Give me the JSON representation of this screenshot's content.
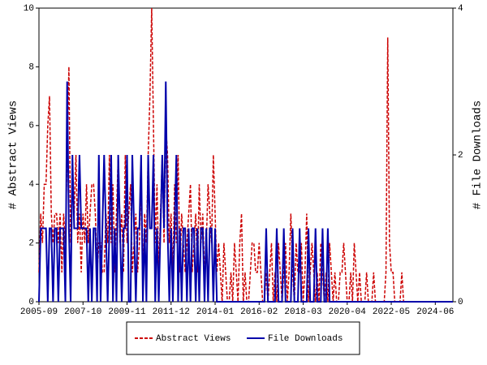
{
  "chart_data": {
    "type": "line",
    "y_label": "# Abstract Views",
    "y2_label": "# File Downloads",
    "x": [
      "2005-09",
      "2005-10",
      "2005-11",
      "2005-12",
      "2006-01",
      "2006-02",
      "2006-03",
      "2006-04",
      "2006-05",
      "2006-06",
      "2006-07",
      "2006-08",
      "2006-09",
      "2006-10",
      "2006-11",
      "2006-12",
      "2007-01",
      "2007-02",
      "2007-03",
      "2007-04",
      "2007-05",
      "2007-06",
      "2007-07",
      "2007-08",
      "2007-09",
      "2007-10",
      "2007-11",
      "2007-12",
      "2008-01",
      "2008-02",
      "2008-03",
      "2008-04",
      "2008-05",
      "2008-06",
      "2008-07",
      "2008-08",
      "2008-09",
      "2008-10",
      "2008-11",
      "2008-12",
      "2009-01",
      "2009-02",
      "2009-03",
      "2009-04",
      "2009-05",
      "2009-06",
      "2009-07",
      "2009-08",
      "2009-09",
      "2009-10",
      "2009-11",
      "2009-12",
      "2010-01",
      "2010-02",
      "2010-03",
      "2010-04",
      "2010-05",
      "2010-06",
      "2010-07",
      "2010-08",
      "2010-09",
      "2010-10",
      "2010-11",
      "2010-12",
      "2011-01",
      "2011-02",
      "2011-03",
      "2011-04",
      "2011-05",
      "2011-06",
      "2011-07",
      "2011-08",
      "2011-09",
      "2011-10",
      "2011-11",
      "2011-12",
      "2012-01",
      "2012-02",
      "2012-03",
      "2012-04",
      "2012-05",
      "2012-06",
      "2012-07",
      "2012-08",
      "2012-09",
      "2012-10",
      "2012-11",
      "2012-12",
      "2013-01",
      "2013-02",
      "2013-03",
      "2013-04",
      "2013-05",
      "2013-06",
      "2013-07",
      "2013-08",
      "2013-09",
      "2013-10",
      "2013-11",
      "2013-12",
      "2014-01",
      "2014-02",
      "2014-03",
      "2014-04",
      "2014-05",
      "2014-06",
      "2014-07",
      "2014-08",
      "2014-09",
      "2014-10",
      "2014-11",
      "2014-12",
      "2015-01",
      "2015-02",
      "2015-03",
      "2015-04",
      "2015-05",
      "2015-06",
      "2015-07",
      "2015-08",
      "2015-09",
      "2015-10",
      "2015-11",
      "2015-12",
      "2016-01",
      "2016-02",
      "2016-03",
      "2016-04",
      "2016-05",
      "2016-06",
      "2016-07",
      "2016-08",
      "2016-09",
      "2016-10",
      "2016-11",
      "2016-12",
      "2017-01",
      "2017-02",
      "2017-03",
      "2017-04",
      "2017-05",
      "2017-06",
      "2017-07",
      "2017-08",
      "2017-09",
      "2017-10",
      "2017-11",
      "2017-12",
      "2018-01",
      "2018-02",
      "2018-03",
      "2018-04",
      "2018-05",
      "2018-06",
      "2018-07",
      "2018-08",
      "2018-09",
      "2018-10",
      "2018-11",
      "2018-12",
      "2019-01",
      "2019-02",
      "2019-03",
      "2019-04",
      "2019-05",
      "2019-06",
      "2019-07",
      "2019-08",
      "2019-09",
      "2019-10",
      "2019-11",
      "2019-12",
      "2020-01",
      "2020-02",
      "2020-03",
      "2020-04",
      "2020-05",
      "2020-06",
      "2020-07",
      "2020-08",
      "2020-09",
      "2020-10",
      "2020-11",
      "2020-12",
      "2021-01",
      "2021-02",
      "2021-03",
      "2021-04",
      "2021-05",
      "2021-06",
      "2021-07",
      "2021-08",
      "2021-09",
      "2021-10",
      "2021-11",
      "2021-12",
      "2022-01",
      "2022-02",
      "2022-03",
      "2022-04",
      "2022-05",
      "2022-06",
      "2022-07",
      "2022-08",
      "2022-09",
      "2022-10",
      "2022-11",
      "2022-12",
      "2023-01",
      "2023-02",
      "2023-03",
      "2023-04",
      "2023-05",
      "2023-06",
      "2023-07",
      "2023-08",
      "2023-09",
      "2023-10",
      "2023-11",
      "2023-12",
      "2024-01",
      "2024-02",
      "2024-03",
      "2024-04",
      "2024-05",
      "2024-06",
      "2024-07",
      "2024-08",
      "2024-09",
      "2024-10",
      "2024-11",
      "2024-12",
      "2025-01",
      "2025-02",
      "2025-03",
      "2025-04"
    ],
    "xticks": [
      "2005-09",
      "2007-10",
      "2009-11",
      "2011-12",
      "2014-01",
      "2016-02",
      "2018-03",
      "2020-04",
      "2022-05",
      "2024-06"
    ],
    "ylim": [
      0,
      10
    ],
    "yticks": [
      0,
      2,
      4,
      6,
      8,
      10
    ],
    "y2lim": [
      0,
      4
    ],
    "y2ticks": [
      0,
      2,
      4
    ],
    "series": [
      {
        "name": "Abstract Views",
        "color": "#cc0000",
        "dashed": true,
        "values": [
          1,
          3,
          2,
          4,
          4,
          6,
          7,
          3,
          2,
          3,
          3,
          2,
          3,
          1,
          3,
          2,
          5,
          8,
          2,
          4,
          3,
          5,
          2,
          3,
          1,
          3,
          2,
          4,
          2,
          3,
          4,
          4,
          3,
          1,
          2,
          2,
          1,
          1,
          3,
          2,
          5,
          2,
          4,
          1,
          3,
          5,
          2,
          3,
          1,
          5,
          2,
          3,
          4,
          1,
          2,
          3,
          1,
          2,
          4,
          1,
          3,
          2,
          5,
          7,
          10,
          6,
          2,
          4,
          1,
          3,
          5,
          2,
          6,
          5,
          2,
          3,
          1,
          4,
          2,
          5,
          1,
          3,
          2,
          1,
          2,
          3,
          4,
          1,
          2,
          3,
          1,
          4,
          2,
          3,
          1,
          2,
          4,
          3,
          2,
          5,
          3,
          1,
          2,
          1,
          0,
          2,
          1,
          0,
          0,
          1,
          0,
          2,
          1,
          0,
          2,
          3,
          0,
          1,
          0,
          0,
          1,
          2,
          2,
          1,
          1,
          2,
          1,
          0,
          0,
          1,
          0,
          1,
          2,
          0,
          1,
          0,
          2,
          1,
          0,
          1,
          2,
          0,
          1,
          3,
          1,
          0,
          2,
          1,
          1,
          2,
          0,
          1,
          3,
          0,
          1,
          2,
          1,
          0,
          1,
          0,
          2,
          1,
          0,
          1,
          0,
          2,
          1,
          0,
          1,
          0,
          0,
          1,
          1,
          2,
          1,
          0,
          0,
          1,
          0,
          2,
          1,
          0,
          1,
          0,
          0,
          0,
          1,
          0,
          0,
          0,
          1,
          0,
          0,
          0,
          0,
          0,
          0,
          1,
          9,
          2,
          1,
          1,
          0,
          0,
          0,
          0,
          1,
          0,
          0,
          0,
          0,
          0,
          0,
          0,
          0,
          0,
          0,
          0,
          0,
          0,
          0,
          0,
          0,
          0,
          0,
          0,
          0,
          0,
          0,
          0,
          0,
          0,
          0,
          0,
          0,
          0
        ]
      },
      {
        "name": "File Downloads",
        "color": "#0000aa",
        "axis": "y2",
        "values": [
          0,
          1,
          1,
          1,
          1,
          0,
          1,
          1,
          0,
          1,
          1,
          0,
          1,
          1,
          1,
          0,
          3,
          1,
          0,
          2,
          1,
          1,
          1,
          2,
          1,
          1,
          1,
          1,
          0,
          1,
          0,
          1,
          1,
          0,
          2,
          0,
          1,
          2,
          1,
          0,
          1,
          2,
          0,
          1,
          0,
          2,
          1,
          0,
          1,
          1,
          2,
          0,
          0,
          2,
          1,
          0,
          1,
          1,
          2,
          0,
          1,
          0,
          2,
          1,
          1,
          2,
          0,
          1,
          0,
          1,
          2,
          1,
          3,
          1,
          0,
          1,
          0,
          1,
          2,
          0,
          1,
          0,
          1,
          1,
          0,
          1,
          0,
          1,
          1,
          0,
          1,
          0,
          1,
          1,
          0,
          1,
          0,
          1,
          1,
          0,
          1,
          0,
          0,
          0,
          0,
          0,
          0,
          0,
          0,
          0,
          0,
          0,
          0,
          0,
          0,
          0,
          0,
          0,
          0,
          0,
          0,
          0,
          0,
          0,
          0,
          0,
          0,
          0,
          0,
          1,
          0,
          0,
          0,
          0,
          0,
          1,
          0,
          0,
          0,
          1,
          0,
          0,
          0,
          0,
          1,
          0,
          0,
          0,
          1,
          0,
          0,
          0,
          0,
          1,
          0,
          0,
          0,
          1,
          0,
          0,
          0,
          1,
          0,
          0,
          1,
          0,
          0,
          0,
          0,
          0,
          0,
          0,
          0,
          0,
          0,
          0,
          0,
          0,
          0,
          0,
          0,
          0,
          0,
          0,
          0,
          0,
          0,
          0,
          0,
          0,
          0,
          0,
          0,
          0,
          0,
          0,
          0,
          0,
          0,
          0,
          0,
          0,
          0,
          0,
          0,
          0,
          0,
          0,
          0,
          0,
          0,
          0,
          0,
          0,
          0,
          0,
          0,
          0,
          0,
          0,
          0,
          0,
          0,
          0,
          0,
          0,
          0,
          0,
          0,
          0,
          0,
          0,
          0,
          0,
          0,
          0
        ]
      }
    ]
  }
}
